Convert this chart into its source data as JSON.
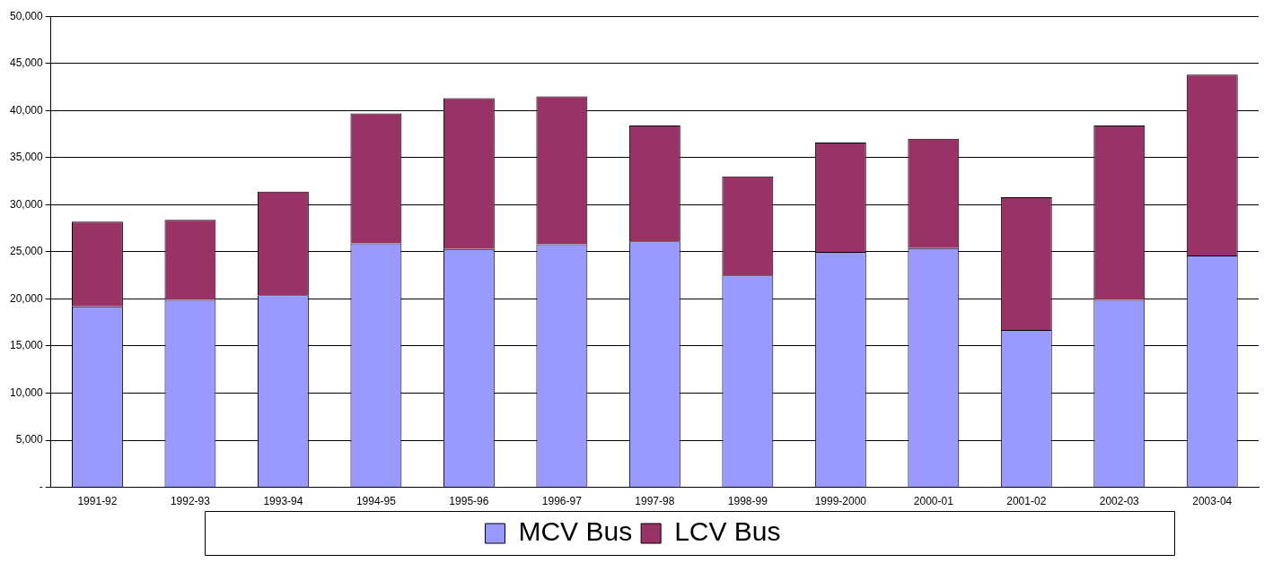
{
  "chart_data": {
    "type": "bar",
    "stacked": true,
    "categories": [
      "1991-92",
      "1992-93",
      "1993-94",
      "1994-95",
      "1995-96",
      "1996-97",
      "1997-98",
      "1998-99",
      "1999-2000",
      "2000-01",
      "2001-02",
      "2002-03",
      "2003-04"
    ],
    "series": [
      {
        "name": "MCV Bus",
        "color": "#9999ff",
        "values": [
          19200,
          19900,
          20400,
          25900,
          25300,
          25800,
          26100,
          22500,
          25000,
          25400,
          16700,
          19900,
          24600
        ]
      },
      {
        "name": "LCV Bus",
        "color": "#993366",
        "values": [
          9000,
          8500,
          11000,
          13800,
          16000,
          15700,
          12300,
          10500,
          11600,
          11600,
          14100,
          18500,
          19200
        ]
      }
    ],
    "ylim": [
      0,
      50000
    ],
    "yticks": [
      {
        "value": 0,
        "label": "-"
      },
      {
        "value": 5000,
        "label": "5,000"
      },
      {
        "value": 10000,
        "label": "10,000"
      },
      {
        "value": 15000,
        "label": "15,000"
      },
      {
        "value": 20000,
        "label": "20,000"
      },
      {
        "value": 25000,
        "label": "25,000"
      },
      {
        "value": 30000,
        "label": "30,000"
      },
      {
        "value": 35000,
        "label": "35,000"
      },
      {
        "value": 40000,
        "label": "40,000"
      },
      {
        "value": 45000,
        "label": "45,000"
      },
      {
        "value": 50000,
        "label": "50,000"
      }
    ],
    "grid": "y",
    "legend": "bottom"
  }
}
